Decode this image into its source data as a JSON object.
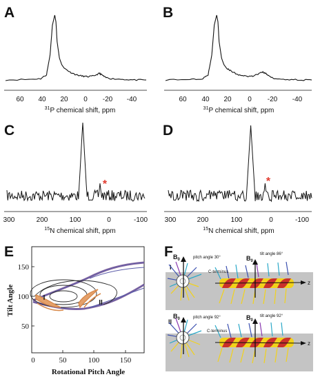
{
  "panels": {
    "A": {
      "letter": "A"
    },
    "B": {
      "letter": "B"
    },
    "C": {
      "letter": "C"
    },
    "D": {
      "letter": "D"
    },
    "E": {
      "letter": "E"
    },
    "F": {
      "letter": "F"
    }
  },
  "axes": {
    "p31": {
      "ticks": [
        "60",
        "40",
        "20",
        "0",
        "-20",
        "-40"
      ],
      "title_prefix": "31",
      "title_text": "P chemical shift, ppm"
    },
    "n15": {
      "ticks": [
        "300",
        "200",
        "100",
        "0",
        "-100"
      ],
      "title_prefix": "15",
      "title_text": "N chemical shift, ppm"
    },
    "tilt": {
      "xlabel": "Rotational Pitch Angle",
      "ylabel": "Tilt Angle",
      "xticks": [
        "0",
        "50",
        "100",
        "150"
      ],
      "yticks": [
        "50",
        "100",
        "150"
      ]
    }
  },
  "annotations": {
    "asterisk_c": "*",
    "asterisk_d": "*",
    "region_i": "I",
    "region_ii": "II"
  },
  "structure": {
    "row1": {
      "roman": "I",
      "b0_left": "B",
      "b0_right": "B",
      "b0_sub": "0",
      "pitch_label": "pitch angle 30°",
      "tilt_label": "tilt angle 86°",
      "cterm": "C-terminus",
      "z": "z"
    },
    "row2": {
      "roman": "II",
      "b0_left": "B",
      "b0_right": "B",
      "b0_sub": "0",
      "pitch_label": "pitch angle 92°",
      "tilt_label": "tilt angle 92°",
      "cterm": "C-terminus",
      "z": "z"
    }
  },
  "colors": {
    "asterisk": "#e23b2f",
    "contour_black": "#2a2a2a",
    "contour_blue": "#5a5aa8",
    "contour_orange": "#d8894a",
    "membrane": "#c4c4c4",
    "helix_red": "#c9302c",
    "helix_yellow": "#f2d21b"
  },
  "chart_data": [
    {
      "panel": "A",
      "type": "line",
      "xlabel": "31P chemical shift, ppm",
      "xlim": [
        70,
        -50
      ],
      "x": [
        70,
        50,
        40,
        35,
        32,
        30,
        28,
        27,
        26,
        24,
        22,
        20,
        15,
        10,
        5,
        0,
        -5,
        -10,
        -12,
        -15,
        -20,
        -30,
        -40,
        -50
      ],
      "y": [
        0.02,
        0.03,
        0.04,
        0.1,
        0.4,
        0.85,
        1.0,
        0.9,
        0.6,
        0.35,
        0.25,
        0.2,
        0.14,
        0.1,
        0.08,
        0.07,
        0.08,
        0.12,
        0.1,
        0.06,
        0.04,
        0.03,
        0.02,
        0.02
      ]
    },
    {
      "panel": "B",
      "type": "line",
      "xlabel": "31P chemical shift, ppm",
      "xlim": [
        70,
        -50
      ],
      "x": [
        70,
        50,
        40,
        35,
        32,
        30,
        28,
        27,
        26,
        24,
        22,
        20,
        15,
        10,
        5,
        0,
        -5,
        -10,
        -12,
        -15,
        -20,
        -30,
        -40,
        -50
      ],
      "y": [
        0.02,
        0.03,
        0.04,
        0.1,
        0.4,
        0.85,
        1.0,
        0.9,
        0.6,
        0.35,
        0.25,
        0.2,
        0.14,
        0.1,
        0.08,
        0.07,
        0.1,
        0.14,
        0.12,
        0.08,
        0.04,
        0.03,
        0.02,
        0.02
      ]
    },
    {
      "panel": "C",
      "type": "line",
      "xlabel": "15N chemical shift, ppm",
      "xlim": [
        300,
        -100
      ],
      "peak_x": 80,
      "minor_peak_x": 30
    },
    {
      "panel": "D",
      "type": "line",
      "xlabel": "15N chemical shift, ppm",
      "xlim": [
        300,
        -100
      ],
      "peak_x": 70,
      "minor_peak_x": 30
    },
    {
      "panel": "E",
      "type": "contour",
      "xlabel": "Rotational Pitch Angle",
      "ylabel": "Tilt Angle",
      "xlim": [
        0,
        180
      ],
      "ylim": [
        0,
        180
      ],
      "regions": [
        {
          "name": "I",
          "x": 20,
          "y": 93
        },
        {
          "name": "II",
          "x": 90,
          "y": 93
        }
      ]
    }
  ]
}
